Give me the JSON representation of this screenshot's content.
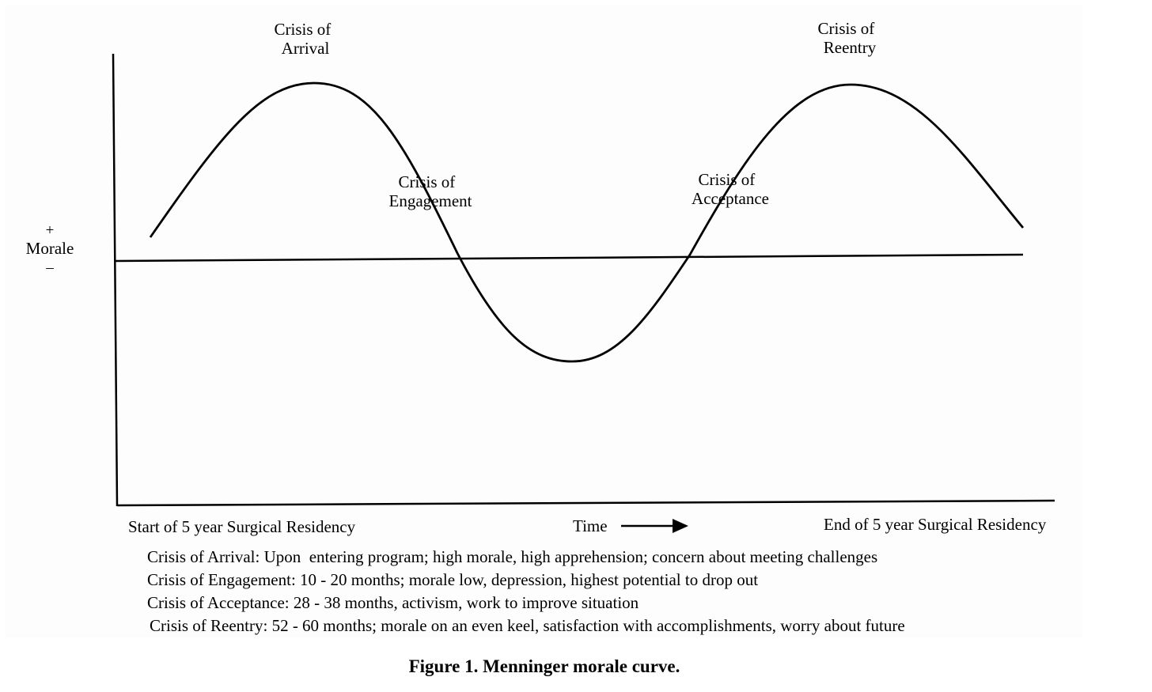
{
  "figure": {
    "caption": "Figure 1. Menninger morale curve."
  },
  "axis": {
    "y_label": "Morale",
    "y_plus": "+",
    "y_minus": "–",
    "x_start": "Start of 5 year Surgical Residency",
    "x_label": "Time",
    "x_end": "End of 5 year Surgical Residency"
  },
  "phases": [
    {
      "line1": "Crisis of",
      "line2": "Arrival"
    },
    {
      "line1": "Crisis of",
      "line2": "Engagement"
    },
    {
      "line1": "Crisis of",
      "line2": "Acceptance"
    },
    {
      "line1": "Crisis of",
      "line2": "Reentry"
    }
  ],
  "legend": [
    "Crisis of Arrival: Upon  entering program; high morale, high apprehension; concern about meeting challenges",
    "Crisis of Engagement: 10 - 20 months; morale low, depression, highest potential to drop out",
    "Crisis of Acceptance: 28 - 38 months, activism, work to improve situation",
    "Crisis of Reentry: 52 - 60 months; morale on an even keel, satisfaction with accomplishments, worry about future"
  ]
}
